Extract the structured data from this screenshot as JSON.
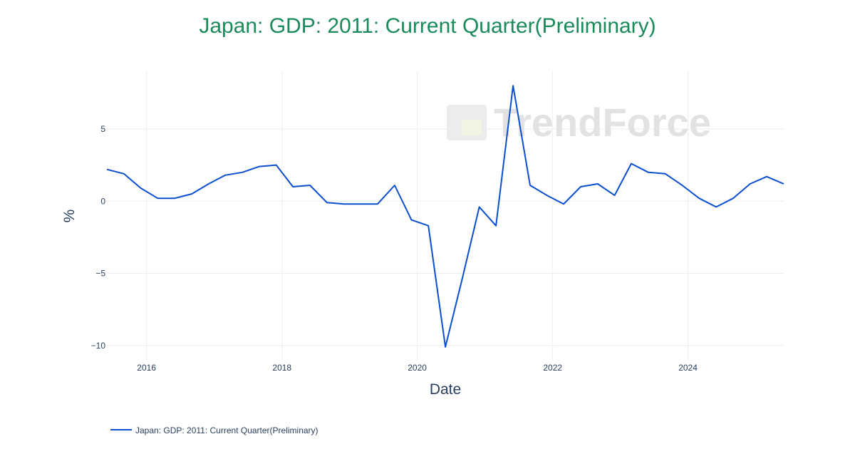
{
  "chart_data": {
    "type": "line",
    "title": "Japan: GDP: 2011: Current Quarter(Preliminary)",
    "xlabel": "Date",
    "ylabel": "%",
    "x_ticks": [
      "2016",
      "2018",
      "2020",
      "2022",
      "2024"
    ],
    "y_ticks": [
      {
        "value": 5,
        "label": "5"
      },
      {
        "value": 0,
        "label": "0"
      },
      {
        "value": -5,
        "label": "−5"
      },
      {
        "value": -10,
        "label": "−10"
      }
    ],
    "xlim": [
      "2015-06-01",
      "2025-06-01"
    ],
    "ylim": [
      -11,
      9
    ],
    "grid": true,
    "legend_position": "bottom-left",
    "watermark": "TrendForce",
    "colors": {
      "title": "#1a8a5a",
      "series": "#0b4fcf",
      "grid": "#eeeeee",
      "text": "#2a3f5f"
    },
    "series": [
      {
        "name": "Japan: GDP: 2011: Current Quarter(Preliminary)",
        "points": [
          [
            "2015-06-01",
            2.2
          ],
          [
            "2015-09-01",
            1.9
          ],
          [
            "2015-12-01",
            0.9
          ],
          [
            "2016-03-01",
            0.2
          ],
          [
            "2016-06-01",
            0.2
          ],
          [
            "2016-09-01",
            0.5
          ],
          [
            "2016-12-01",
            1.2
          ],
          [
            "2017-03-01",
            1.8
          ],
          [
            "2017-06-01",
            2.0
          ],
          [
            "2017-09-01",
            2.4
          ],
          [
            "2017-12-01",
            2.5
          ],
          [
            "2018-03-01",
            1.0
          ],
          [
            "2018-06-01",
            1.1
          ],
          [
            "2018-09-01",
            -0.1
          ],
          [
            "2018-12-01",
            -0.2
          ],
          [
            "2019-03-01",
            -0.2
          ],
          [
            "2019-06-01",
            -0.2
          ],
          [
            "2019-09-01",
            1.1
          ],
          [
            "2019-12-01",
            -1.3
          ],
          [
            "2020-03-01",
            -1.7
          ],
          [
            "2020-06-01",
            -10.1
          ],
          [
            "2020-09-01",
            -5.3
          ],
          [
            "2020-12-01",
            -0.4
          ],
          [
            "2021-03-01",
            -1.7
          ],
          [
            "2021-06-01",
            8.0
          ],
          [
            "2021-09-01",
            1.1
          ],
          [
            "2021-12-01",
            0.4
          ],
          [
            "2022-03-01",
            -0.2
          ],
          [
            "2022-06-01",
            1.0
          ],
          [
            "2022-09-01",
            1.2
          ],
          [
            "2022-12-01",
            0.4
          ],
          [
            "2023-03-01",
            2.6
          ],
          [
            "2023-06-01",
            2.0
          ],
          [
            "2023-09-01",
            1.9
          ],
          [
            "2023-12-01",
            1.1
          ],
          [
            "2024-03-01",
            0.2
          ],
          [
            "2024-06-01",
            -0.4
          ],
          [
            "2024-09-01",
            0.2
          ],
          [
            "2024-12-01",
            1.2
          ],
          [
            "2025-03-01",
            1.7
          ],
          [
            "2025-06-01",
            1.2
          ]
        ]
      }
    ]
  }
}
